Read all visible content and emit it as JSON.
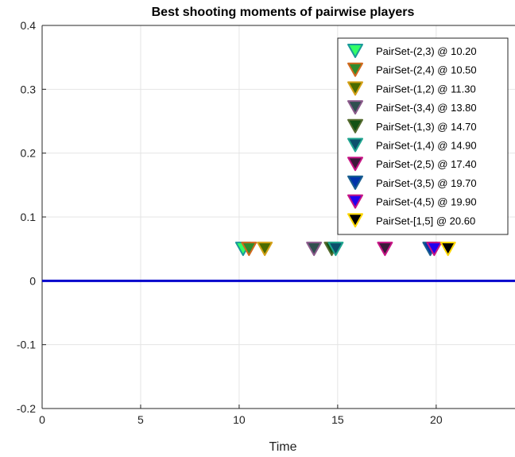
{
  "chart_data": {
    "type": "scatter",
    "title": "Best shooting moments of pairwise players",
    "xlabel": "Time",
    "ylabel": "",
    "xlim": [
      0,
      24
    ],
    "ylim": [
      -0.2,
      0.4
    ],
    "x_ticks": [
      0,
      5,
      10,
      15,
      20
    ],
    "x_tick_labels": [
      "0",
      "5",
      "10",
      "15",
      "20"
    ],
    "y_ticks": [
      -0.2,
      -0.1,
      0,
      0.1,
      0.2,
      0.3,
      0.4
    ],
    "y_tick_labels": [
      "-0.2",
      "-0.1",
      "0",
      "0.1",
      "0.2",
      "0.3",
      "0.4"
    ],
    "grid": true,
    "legend_position": "top-right",
    "marker": "downward-triangle",
    "baseline": {
      "y": 0,
      "color": "#0000cc"
    },
    "series": [
      {
        "name": "PairSet-(2,3) @ 10.20",
        "x": 10.2,
        "y": 0.05,
        "fill": "#33ff66",
        "edge": "#1a9a9a"
      },
      {
        "name": "PairSet-(2,4) @ 10.50",
        "x": 10.5,
        "y": 0.05,
        "fill": "#2e8b2e",
        "edge": "#d2691e"
      },
      {
        "name": "PairSet-(1,2) @ 11.30",
        "x": 11.3,
        "y": 0.05,
        "fill": "#4a6b00",
        "edge": "#d4a017"
      },
      {
        "name": "PairSet-(3,4) @ 13.80",
        "x": 13.8,
        "y": 0.05,
        "fill": "#2f4f4f",
        "edge": "#8b5a8b"
      },
      {
        "name": "PairSet-(1,3) @ 14.70",
        "x": 14.7,
        "y": 0.05,
        "fill": "#145214",
        "edge": "#556b2f"
      },
      {
        "name": "PairSet-(1,4) @ 14.90",
        "x": 14.9,
        "y": 0.05,
        "fill": "#0b4f6c",
        "edge": "#1fa58f"
      },
      {
        "name": "PairSet-(2,5) @ 17.40",
        "x": 17.4,
        "y": 0.05,
        "fill": "#3a1a3a",
        "edge": "#c71585"
      },
      {
        "name": "PairSet-(3,5) @ 19.70",
        "x": 19.7,
        "y": 0.05,
        "fill": "#0033aa",
        "edge": "#1a5f8f"
      },
      {
        "name": "PairSet-(4,5) @ 19.90",
        "x": 19.9,
        "y": 0.05,
        "fill": "#2200ee",
        "edge": "#c71585"
      },
      {
        "name": "PairSet-[1,5] @ 20.60",
        "x": 20.6,
        "y": 0.05,
        "fill": "#000000",
        "edge": "#ffd700"
      }
    ]
  }
}
